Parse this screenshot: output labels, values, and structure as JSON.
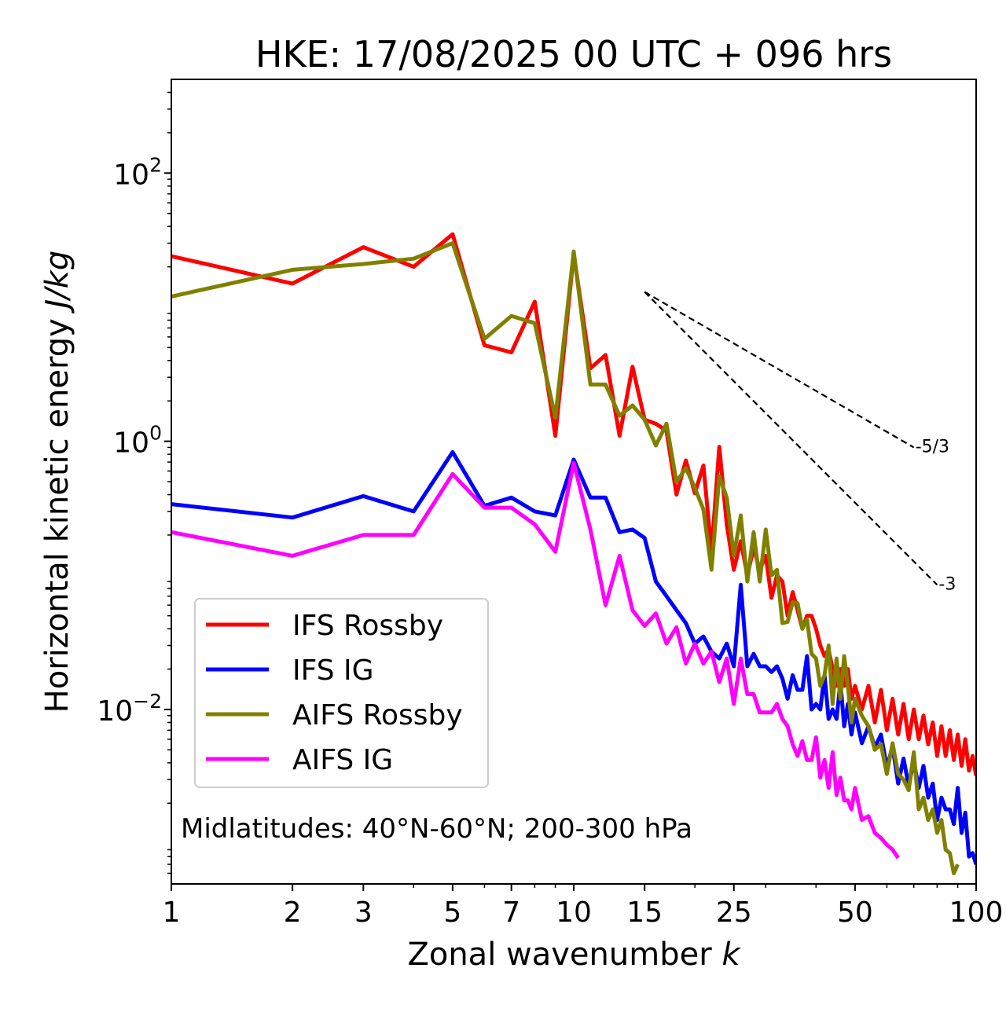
{
  "chart_data": {
    "type": "line",
    "title": "HKE: 17/08/2025 00 UTC + 096 hrs",
    "xlabel": "Zonal wavenumber k",
    "xlabel_prefix": "Zonal wavenumber ",
    "xlabel_var": "k",
    "ylabel": "Horizontal kinetic energy J/kg",
    "ylabel_prefix": "Horizontal kinetic energy ",
    "ylabel_var": "J/kg",
    "xscale": "log",
    "yscale": "log",
    "xlim": [
      1,
      100
    ],
    "ylim": [
      0.0005,
      500
    ],
    "x_ticks": [
      {
        "value": 1,
        "label": "1"
      },
      {
        "value": 2,
        "label": "2"
      },
      {
        "value": 3,
        "label": "3"
      },
      {
        "value": 5,
        "label": "5"
      },
      {
        "value": 7,
        "label": "7"
      },
      {
        "value": 10,
        "label": "10"
      },
      {
        "value": 15,
        "label": "15"
      },
      {
        "value": 25,
        "label": "25"
      },
      {
        "value": 50,
        "label": "50"
      },
      {
        "value": 100,
        "label": "100"
      }
    ],
    "y_ticks": [
      {
        "value": 0.01,
        "base": "10",
        "exp": "−2"
      },
      {
        "value": 1,
        "base": "10",
        "exp": "0"
      },
      {
        "value": 100,
        "base": "10",
        "exp": "2"
      }
    ],
    "legend": {
      "placement": "lower-left",
      "entries": [
        {
          "label": "IFS Rossby",
          "color": "#ff0000"
        },
        {
          "label": "IFS IG",
          "color": "#0000ff"
        },
        {
          "label": "AIFS Rossby",
          "color": "#808000"
        },
        {
          "label": "AIFS IG",
          "color": "#ff00ff"
        }
      ]
    },
    "annotation": "Midlatitudes: 40°N-60°N; 200-300 hPa",
    "reference_lines": [
      {
        "label": "-5/3",
        "slope": -1.6667,
        "x": [
          15,
          70
        ],
        "y": [
          13,
          0.9
        ],
        "style": "dashed",
        "color": "#000000"
      },
      {
        "label": "-3",
        "slope": -3,
        "x": [
          15,
          80
        ],
        "y": [
          13,
          0.085
        ],
        "style": "dashed",
        "color": "#000000"
      }
    ],
    "series": [
      {
        "name": "IFS Rossby",
        "color": "#ff0000",
        "x": [
          1,
          2,
          3,
          4,
          5,
          6,
          7,
          8,
          9,
          10,
          11,
          12,
          13,
          14,
          15,
          16,
          17,
          18,
          19,
          20,
          21,
          22,
          23,
          24,
          25,
          26,
          27,
          28,
          29,
          30,
          31,
          32,
          33,
          34,
          35,
          36,
          37,
          38,
          39,
          40,
          41,
          42,
          43,
          44,
          45,
          46,
          47,
          48,
          49,
          50,
          52,
          54,
          56,
          58,
          60,
          62,
          64,
          66,
          68,
          70,
          72,
          74,
          76,
          78,
          80,
          82,
          84,
          86,
          88,
          90,
          92,
          94,
          96,
          98,
          100
        ],
        "values": [
          24,
          15,
          28,
          20,
          35,
          5.2,
          4.6,
          11,
          1.1,
          25,
          3.5,
          4.4,
          1.1,
          3.6,
          1.45,
          1.35,
          1.2,
          0.4,
          0.72,
          0.41,
          0.66,
          0.15,
          0.91,
          0.24,
          0.11,
          0.18,
          0.1,
          0.16,
          0.11,
          0.14,
          0.068,
          0.1,
          0.09,
          0.05,
          0.075,
          0.055,
          0.04,
          0.05,
          0.05,
          0.04,
          0.03,
          0.025,
          0.028,
          0.02,
          0.015,
          0.02,
          0.015,
          0.02,
          0.012,
          0.015,
          0.01,
          0.015,
          0.008,
          0.014,
          0.007,
          0.012,
          0.0065,
          0.011,
          0.006,
          0.01,
          0.006,
          0.009,
          0.0055,
          0.008,
          0.0045,
          0.0075,
          0.0045,
          0.007,
          0.0042,
          0.0065,
          0.0038,
          0.006,
          0.0035,
          0.0045,
          0.0032
        ]
      },
      {
        "name": "IFS IG",
        "color": "#0000ff",
        "x": [
          1,
          2,
          3,
          4,
          5,
          6,
          7,
          8,
          9,
          10,
          11,
          12,
          13,
          14,
          15,
          16,
          17,
          18,
          19,
          20,
          21,
          22,
          23,
          24,
          25,
          26,
          27,
          28,
          29,
          30,
          31,
          32,
          33,
          34,
          35,
          36,
          37,
          38,
          39,
          40,
          41,
          42,
          43,
          44,
          45,
          46,
          47,
          48,
          49,
          50,
          52,
          54,
          56,
          58,
          60,
          62,
          64,
          66,
          68,
          70,
          72,
          74,
          76,
          78,
          80,
          82,
          84,
          86,
          88,
          90,
          92,
          94,
          96,
          98,
          100
        ],
        "values": [
          0.34,
          0.27,
          0.39,
          0.3,
          0.83,
          0.33,
          0.38,
          0.3,
          0.28,
          0.73,
          0.38,
          0.38,
          0.21,
          0.22,
          0.19,
          0.09,
          0.07,
          0.055,
          0.044,
          0.031,
          0.035,
          0.027,
          0.024,
          0.031,
          0.021,
          0.085,
          0.021,
          0.026,
          0.021,
          0.021,
          0.019,
          0.021,
          0.017,
          0.012,
          0.018,
          0.014,
          0.014,
          0.025,
          0.01,
          0.011,
          0.01,
          0.018,
          0.0085,
          0.01,
          0.0085,
          0.016,
          0.0075,
          0.011,
          0.0065,
          0.0095,
          0.0056,
          0.0075,
          0.0052,
          0.0065,
          0.0037,
          0.0053,
          0.0028,
          0.0043,
          0.0027,
          0.0041,
          0.0026,
          0.0038,
          0.0022,
          0.0028,
          0.0015,
          0.0022,
          0.0018,
          0.0018,
          0.0014,
          0.0026,
          0.0012,
          0.0017,
          0.0008,
          0.00085,
          0.0007
        ]
      },
      {
        "name": "AIFS Rossby",
        "color": "#808000",
        "x": [
          1,
          2,
          3,
          4,
          5,
          6,
          7,
          8,
          9,
          10,
          11,
          12,
          13,
          14,
          15,
          16,
          17,
          18,
          19,
          20,
          21,
          22,
          23,
          24,
          25,
          26,
          27,
          28,
          29,
          30,
          31,
          32,
          33,
          34,
          35,
          36,
          37,
          38,
          39,
          40,
          41,
          42,
          43,
          44,
          45,
          46,
          47,
          48,
          49,
          50,
          52,
          54,
          56,
          58,
          60,
          62,
          64,
          66,
          68,
          70,
          72,
          74,
          76,
          78,
          80,
          82,
          84,
          86,
          88,
          90
        ],
        "values": [
          12,
          19,
          21,
          23,
          30,
          5.8,
          8.6,
          7.6,
          1.5,
          26,
          2.65,
          2.65,
          1.55,
          1.85,
          1.45,
          0.93,
          1.35,
          0.5,
          0.63,
          0.45,
          0.31,
          0.11,
          0.55,
          0.38,
          0.14,
          0.28,
          0.09,
          0.21,
          0.09,
          0.22,
          0.1,
          0.11,
          0.044,
          0.045,
          0.063,
          0.062,
          0.04,
          0.047,
          0.026,
          0.024,
          0.015,
          0.018,
          0.03,
          0.011,
          0.024,
          0.012,
          0.025,
          0.015,
          0.008,
          0.012,
          0.009,
          0.0075,
          0.005,
          0.0055,
          0.0033,
          0.0056,
          0.0033,
          0.003,
          0.0025,
          0.0048,
          0.0018,
          0.0022,
          0.0015,
          0.0018,
          0.0012,
          0.0015,
          0.0009,
          0.00085,
          0.0006,
          0.0007
        ]
      },
      {
        "name": "AIFS IG",
        "color": "#ff00ff",
        "x": [
          1,
          2,
          3,
          4,
          5,
          6,
          7,
          8,
          9,
          10,
          11,
          12,
          13,
          14,
          15,
          16,
          17,
          18,
          19,
          20,
          21,
          22,
          23,
          24,
          25,
          26,
          27,
          28,
          29,
          30,
          31,
          32,
          33,
          34,
          35,
          36,
          37,
          38,
          39,
          40,
          41,
          42,
          43,
          44,
          45,
          46,
          47,
          48,
          49,
          50,
          52,
          54,
          56,
          58,
          60,
          62,
          64
        ],
        "values": [
          0.21,
          0.14,
          0.2,
          0.2,
          0.57,
          0.32,
          0.32,
          0.24,
          0.15,
          0.69,
          0.22,
          0.06,
          0.14,
          0.055,
          0.042,
          0.052,
          0.031,
          0.041,
          0.022,
          0.031,
          0.022,
          0.027,
          0.016,
          0.024,
          0.011,
          0.024,
          0.013,
          0.013,
          0.0095,
          0.0095,
          0.0095,
          0.011,
          0.0085,
          0.0075,
          0.0055,
          0.0045,
          0.0058,
          0.0042,
          0.0042,
          0.0062,
          0.0031,
          0.0042,
          0.0026,
          0.0048,
          0.0023,
          0.0031,
          0.0021,
          0.0021,
          0.0018,
          0.0026,
          0.0015,
          0.0016,
          0.0012,
          0.0011,
          0.00098,
          0.0009,
          0.00078
        ]
      }
    ]
  }
}
